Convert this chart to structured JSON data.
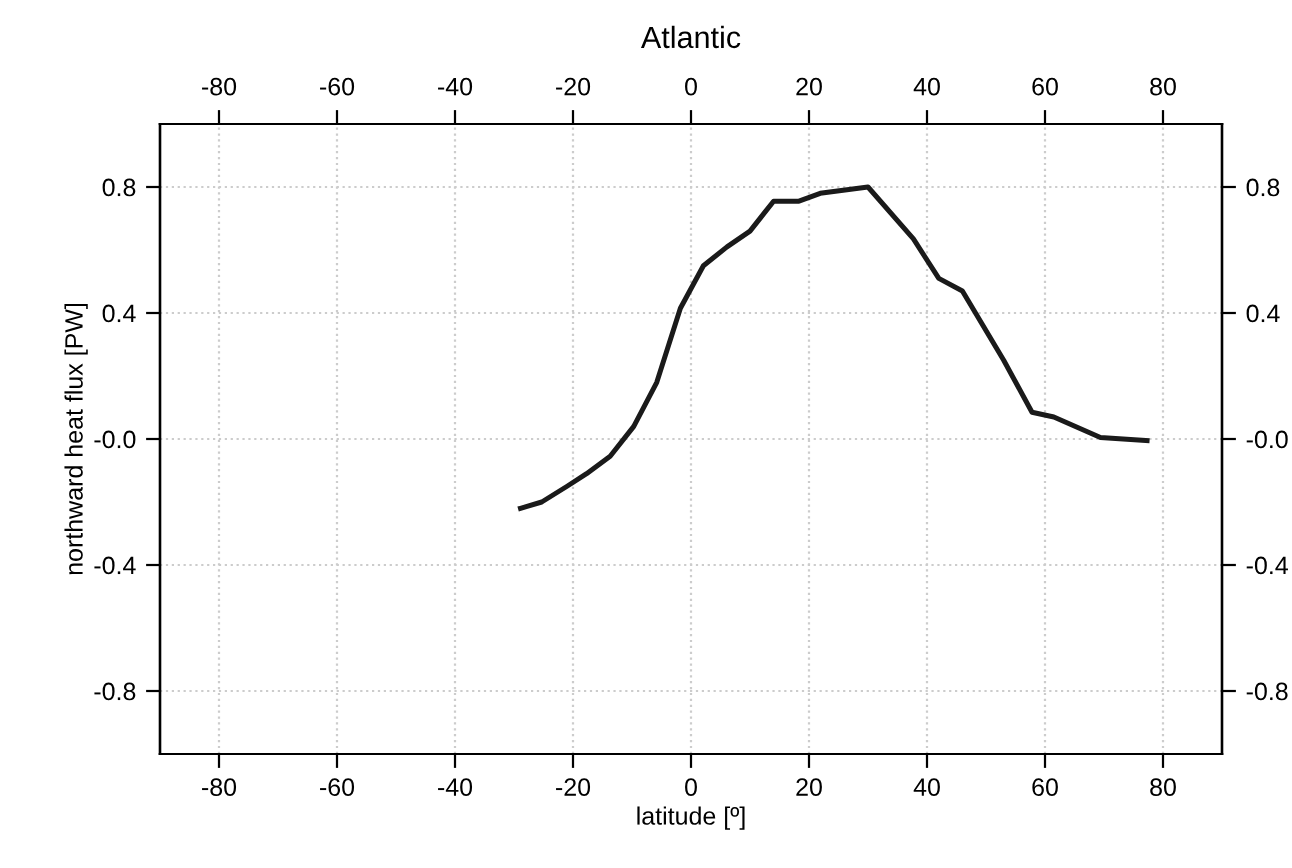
{
  "chart_data": {
    "type": "line",
    "title": "Atlantic",
    "xlabel": "latitude [º]",
    "ylabel": "northward heat flux [PW]",
    "x": [
      -28.9,
      -25.3,
      -21,
      -17.7,
      -13.7,
      -9.7,
      -5.8,
      -1.8,
      2.1,
      6.1,
      10.0,
      14.0,
      18.3,
      21.9,
      30.0,
      37.7,
      42,
      46,
      53,
      57.8,
      61.5,
      69.4,
      77.3
    ],
    "series": [
      {
        "color": "#1a1a1a",
        "values": [
          -0.22,
          -0.2,
          -0.15,
          -0.11,
          -0.055,
          0.04,
          0.18,
          0.415,
          0.55,
          0.61,
          0.66,
          0.755,
          0.755,
          0.78,
          0.8,
          0.635,
          0.51,
          0.47,
          0.25,
          0.085,
          0.07,
          0.005,
          -0.005
        ]
      }
    ],
    "xlim": [
      -90,
      90
    ],
    "xticks": [
      -80,
      -60,
      -40,
      -20,
      0,
      20,
      40,
      60,
      80
    ],
    "x2lim": [
      -90,
      90
    ],
    "x2ticks": [
      -80,
      -60,
      -40,
      -20,
      0,
      20,
      40,
      60,
      80
    ],
    "ylim": [
      -1,
      1
    ],
    "yticks": [
      {
        "value": -0.8,
        "label": "-0.8"
      },
      {
        "value": -0.4,
        "label": "-0.4"
      },
      {
        "value": 0,
        "label": "-0.0"
      },
      {
        "value": 0.4,
        "label": "0.4"
      },
      {
        "value": 0.8,
        "label": "0.8"
      }
    ],
    "y2lim": [
      -1,
      1
    ],
    "y2ticks": [
      {
        "value": -0.8,
        "label": "-0.8"
      },
      {
        "value": -0.4,
        "label": "-0.4"
      },
      {
        "value": 0,
        "label": "-0.0"
      },
      {
        "value": 0.4,
        "label": "0.4"
      },
      {
        "value": 0.8,
        "label": "0.8"
      }
    ],
    "grid": true,
    "line_style": "solid"
  }
}
